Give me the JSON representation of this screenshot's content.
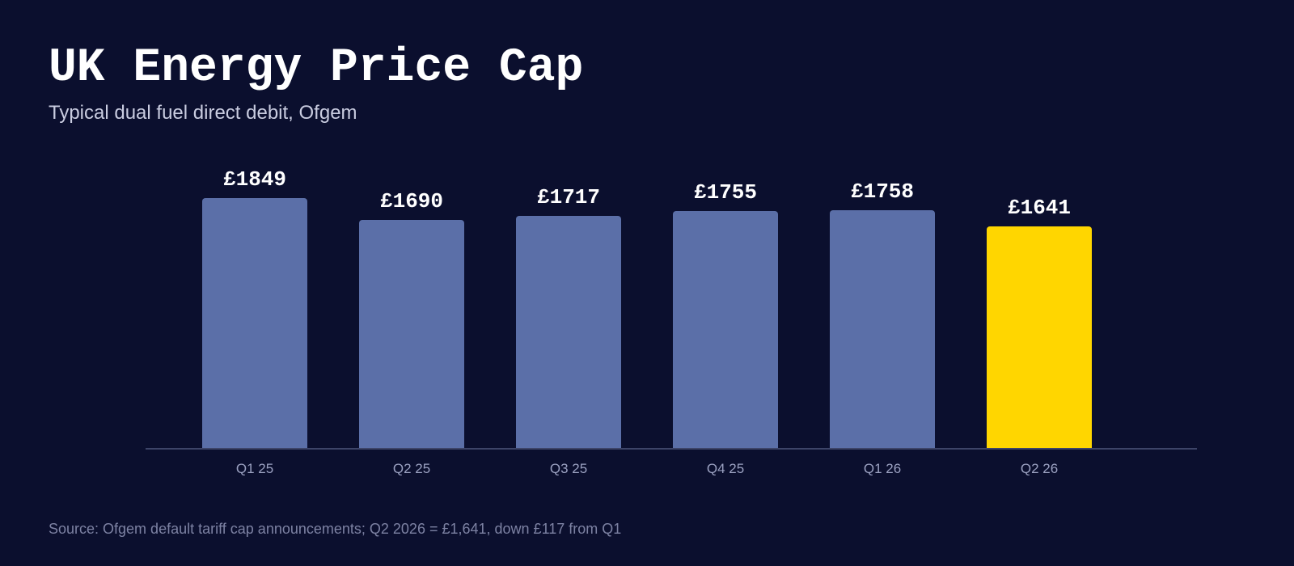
{
  "header": {
    "title": "UK Energy Price Cap",
    "subtitle": "Typical dual fuel direct debit, Ofgem"
  },
  "footer": {
    "source": "Source: Ofgem default tariff cap announcements; Q2 2026 = £1,641, down £117 from Q1"
  },
  "colors": {
    "background": "#0b0f2e",
    "bar_default": "#5b6fa8",
    "bar_highlight": "#ffd600",
    "axis": "#3d4468"
  },
  "chart_data": {
    "type": "bar",
    "title": "UK Energy Price Cap",
    "subtitle": "Typical dual fuel direct debit, Ofgem",
    "categories": [
      "Q1 25",
      "Q2 25",
      "Q3 25",
      "Q4 25",
      "Q1 26",
      "Q2 26"
    ],
    "values": [
      1849,
      1690,
      1717,
      1755,
      1758,
      1641
    ],
    "value_labels": [
      "£1849",
      "£1690",
      "£1717",
      "£1755",
      "£1758",
      "£1641"
    ],
    "highlight_index": 5,
    "xlabel": "",
    "ylabel": "",
    "ylim": [
      0,
      1849
    ],
    "grid": false,
    "legend": null,
    "annotation": "Source: Ofgem default tariff cap announcements; Q2 2026 = £1,641, down £117 from Q1"
  }
}
